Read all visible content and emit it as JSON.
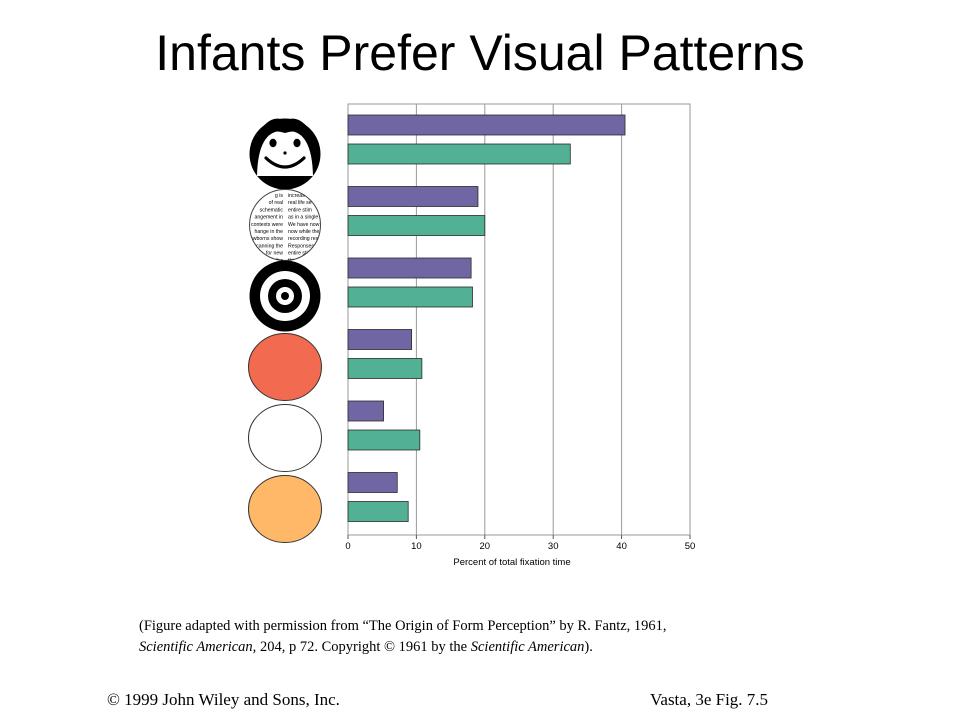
{
  "title": "Infants Prefer Visual Patterns",
  "chart_data": {
    "type": "bar",
    "orientation": "horizontal",
    "categories": [
      "face",
      "printed text",
      "bull's-eye",
      "red circle",
      "white circle",
      "yellow circle"
    ],
    "series": [
      {
        "values": [
          40.5,
          19,
          18,
          9.3,
          5.2,
          7.2
        ],
        "color": "#6f66a3"
      },
      {
        "values": [
          32.5,
          20,
          18.2,
          10.8,
          10.5,
          8.8
        ],
        "color": "#52b094"
      }
    ],
    "xlabel": "Percent of total fixation time",
    "xlim": [
      0,
      50
    ],
    "xticks": [
      "0",
      "10",
      "20",
      "30",
      "40",
      "50"
    ],
    "grid": true,
    "stimuli_colors": {
      "face": "#000000",
      "red": "#f26a4f",
      "white": "#ffffff",
      "yellow": "#ffb768"
    },
    "stimulus_text_left": [
      "g is",
      "of real",
      "schematic",
      "angement in",
      "contexts were",
      "hange in the",
      "ewborns show",
      "canning the",
      "for new",
      "the"
    ],
    "stimulus_text_right": [
      "increas",
      "real life se",
      "entire stim",
      "as in a single",
      "We have now",
      "now while the",
      "recording res",
      "Responses",
      "entire stim",
      "this ap"
    ]
  },
  "caption": {
    "part1": "(Figure adapted with permission from “The Origin of Form Perception” by R. Fantz, 1961,",
    "part2_italic": "Scientific American,",
    "part3": " 204, p 72. Copyright © 1961 by the ",
    "part4_italic": "Scientific American",
    "part5": ")."
  },
  "footer": {
    "left": "©  1999 John Wiley and Sons, Inc.",
    "right": "Vasta, 3e Fig.  7.5"
  }
}
